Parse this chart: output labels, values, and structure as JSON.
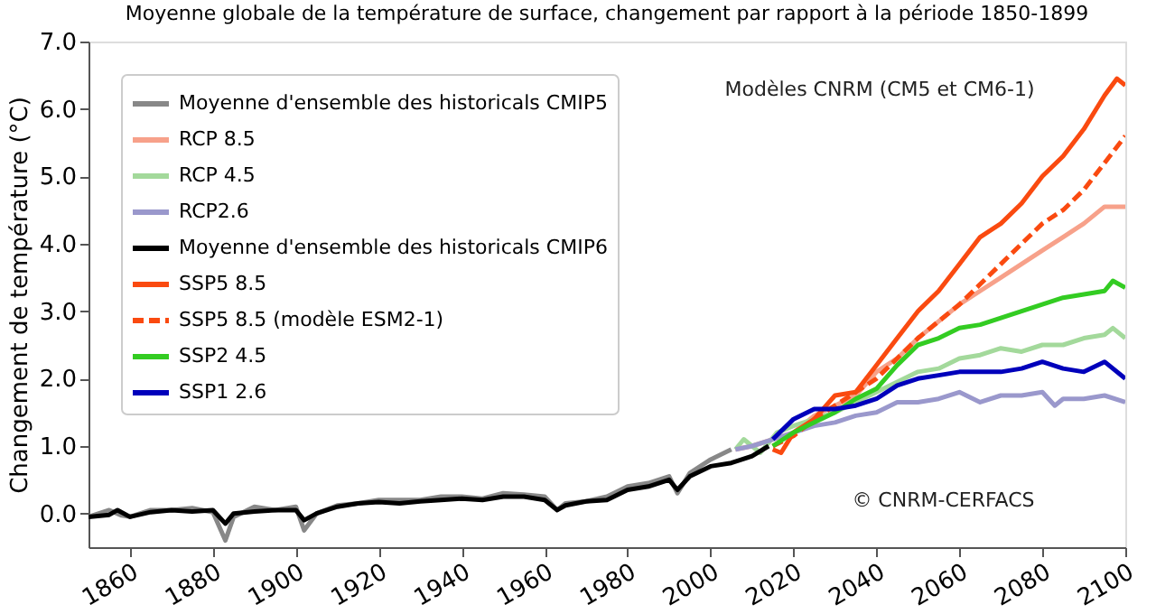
{
  "chart_data": {
    "type": "line",
    "title": "Moyenne globale de la température de surface, changement par rapport à la période 1850-1899",
    "ylabel": "Changement de température (°C)",
    "xlim": [
      1850,
      2100
    ],
    "xticks": [
      1860,
      1880,
      1900,
      1920,
      1940,
      1960,
      1980,
      2000,
      2020,
      2040,
      2060,
      2080,
      2100
    ],
    "ylim": [
      -0.5,
      7.0
    ],
    "yticks": [
      {
        "value": 0,
        "label": "0.0"
      },
      {
        "value": 1,
        "label": "1.0"
      },
      {
        "value": 2,
        "label": "2.0"
      },
      {
        "value": 3,
        "label": "3.0"
      },
      {
        "value": 4,
        "label": "4.0"
      },
      {
        "value": 5,
        "label": "5.0"
      },
      {
        "value": 6,
        "label": "6.0"
      },
      {
        "value": 7,
        "label": "7.0"
      }
    ],
    "grid": false,
    "legend": "top left",
    "marker": "none",
    "annotations": [
      "Modèles CNRM (CM5 et CM6-1)",
      "© CNRM-CERFACS"
    ],
    "series": [
      {
        "name": "Moyenne d'ensemble des historicals CMIP5",
        "color": "#888888",
        "line_style": "solid",
        "x": [
          1850,
          1855,
          1858,
          1860,
          1865,
          1870,
          1875,
          1880,
          1883,
          1885,
          1890,
          1895,
          1900,
          1902,
          1905,
          1910,
          1915,
          1920,
          1925,
          1930,
          1935,
          1940,
          1945,
          1950,
          1955,
          1960,
          1963,
          1965,
          1970,
          1975,
          1980,
          1985,
          1990,
          1992,
          1995,
          2000,
          2005
        ],
        "values": [
          -0.05,
          0.05,
          -0.03,
          -0.05,
          0.05,
          0.05,
          0.08,
          0.02,
          -0.4,
          -0.05,
          0.1,
          0.05,
          0.1,
          -0.25,
          0.0,
          0.12,
          0.15,
          0.2,
          0.2,
          0.2,
          0.25,
          0.25,
          0.22,
          0.3,
          0.28,
          0.25,
          0.05,
          0.15,
          0.18,
          0.25,
          0.4,
          0.45,
          0.55,
          0.3,
          0.6,
          0.8,
          0.95
        ]
      },
      {
        "name": "RCP 8.5",
        "color": "#f7a18a",
        "line_style": "solid",
        "x": [
          2006,
          2010,
          2015,
          2020,
          2025,
          2030,
          2035,
          2040,
          2045,
          2050,
          2055,
          2060,
          2065,
          2070,
          2075,
          2080,
          2085,
          2090,
          2095,
          2100
        ],
        "values": [
          0.95,
          1.0,
          1.1,
          1.2,
          1.45,
          1.6,
          1.75,
          2.1,
          2.3,
          2.6,
          2.85,
          3.1,
          3.3,
          3.5,
          3.7,
          3.9,
          4.1,
          4.3,
          4.55,
          4.55
        ]
      },
      {
        "name": "RCP 4.5",
        "color": "#a3d99b",
        "line_style": "solid",
        "x": [
          2006,
          2008,
          2012,
          2016,
          2020,
          2025,
          2030,
          2035,
          2040,
          2045,
          2050,
          2055,
          2060,
          2065,
          2070,
          2075,
          2080,
          2085,
          2090,
          2095,
          2097,
          2100
        ],
        "values": [
          0.95,
          1.1,
          0.9,
          1.2,
          1.3,
          1.4,
          1.5,
          1.65,
          1.8,
          1.95,
          2.1,
          2.15,
          2.3,
          2.35,
          2.45,
          2.4,
          2.5,
          2.5,
          2.6,
          2.65,
          2.75,
          2.6
        ]
      },
      {
        "name": "RCP2.6",
        "color": "#9a98cc",
        "line_style": "solid",
        "x": [
          2006,
          2010,
          2015,
          2020,
          2025,
          2030,
          2035,
          2040,
          2045,
          2050,
          2055,
          2060,
          2065,
          2070,
          2075,
          2080,
          2083,
          2085,
          2090,
          2095,
          2100
        ],
        "values": [
          0.95,
          1.0,
          1.1,
          1.2,
          1.3,
          1.35,
          1.45,
          1.5,
          1.65,
          1.65,
          1.7,
          1.8,
          1.65,
          1.75,
          1.75,
          1.8,
          1.6,
          1.7,
          1.7,
          1.75,
          1.65
        ]
      },
      {
        "name": "Moyenne d'ensemble des historicals CMIP6",
        "color": "#000000",
        "line_style": "solid",
        "x": [
          1850,
          1855,
          1857,
          1860,
          1865,
          1870,
          1875,
          1880,
          1883,
          1885,
          1890,
          1895,
          1900,
          1902,
          1905,
          1910,
          1915,
          1920,
          1925,
          1930,
          1935,
          1940,
          1945,
          1950,
          1955,
          1960,
          1963,
          1965,
          1970,
          1975,
          1980,
          1985,
          1990,
          1992,
          1995,
          2000,
          2005,
          2010,
          2014
        ],
        "values": [
          -0.05,
          -0.02,
          0.05,
          -0.05,
          0.02,
          0.05,
          0.03,
          0.05,
          -0.15,
          0.0,
          0.03,
          0.05,
          0.05,
          -0.1,
          0.0,
          0.1,
          0.15,
          0.17,
          0.15,
          0.18,
          0.2,
          0.22,
          0.2,
          0.25,
          0.25,
          0.2,
          0.05,
          0.12,
          0.18,
          0.2,
          0.35,
          0.4,
          0.5,
          0.35,
          0.55,
          0.7,
          0.75,
          0.85,
          1.0
        ]
      },
      {
        "name": "SSP5 8.5",
        "color": "#fa4a10",
        "line_style": "solid",
        "x": [
          2015,
          2017,
          2020,
          2025,
          2030,
          2035,
          2040,
          2045,
          2050,
          2055,
          2060,
          2065,
          2070,
          2075,
          2080,
          2085,
          2090,
          2095,
          2098,
          2100
        ],
        "values": [
          0.95,
          0.9,
          1.2,
          1.4,
          1.75,
          1.8,
          2.2,
          2.6,
          3.0,
          3.3,
          3.7,
          4.1,
          4.3,
          4.6,
          5.0,
          5.3,
          5.7,
          6.2,
          6.45,
          6.35
        ]
      },
      {
        "name": "SSP5 8.5 (modèle ESM2-1)",
        "color": "#fa4a10",
        "line_style": "dashed",
        "x": [
          2015,
          2020,
          2025,
          2030,
          2035,
          2040,
          2045,
          2050,
          2055,
          2060,
          2065,
          2070,
          2075,
          2080,
          2085,
          2090,
          2095,
          2100
        ],
        "values": [
          1.0,
          1.15,
          1.4,
          1.6,
          1.8,
          2.0,
          2.3,
          2.6,
          2.85,
          3.1,
          3.4,
          3.7,
          4.0,
          4.3,
          4.5,
          4.8,
          5.2,
          5.6
        ]
      },
      {
        "name": "SSP2 4.5",
        "color": "#33cc22",
        "line_style": "solid",
        "x": [
          2015,
          2020,
          2025,
          2030,
          2035,
          2040,
          2045,
          2050,
          2055,
          2060,
          2065,
          2070,
          2075,
          2080,
          2085,
          2090,
          2095,
          2097,
          2100
        ],
        "values": [
          1.0,
          1.2,
          1.35,
          1.5,
          1.7,
          1.85,
          2.2,
          2.5,
          2.6,
          2.75,
          2.8,
          2.9,
          3.0,
          3.1,
          3.2,
          3.25,
          3.3,
          3.45,
          3.35
        ]
      },
      {
        "name": "SSP1 2.6",
        "color": "#0000bb",
        "line_style": "solid",
        "x": [
          2015,
          2020,
          2025,
          2030,
          2035,
          2040,
          2045,
          2050,
          2055,
          2060,
          2065,
          2070,
          2075,
          2080,
          2085,
          2090,
          2095,
          2100
        ],
        "values": [
          1.1,
          1.4,
          1.55,
          1.55,
          1.6,
          1.7,
          1.9,
          2.0,
          2.05,
          2.1,
          2.1,
          2.1,
          2.15,
          2.25,
          2.15,
          2.1,
          2.25,
          2.0
        ]
      }
    ]
  }
}
